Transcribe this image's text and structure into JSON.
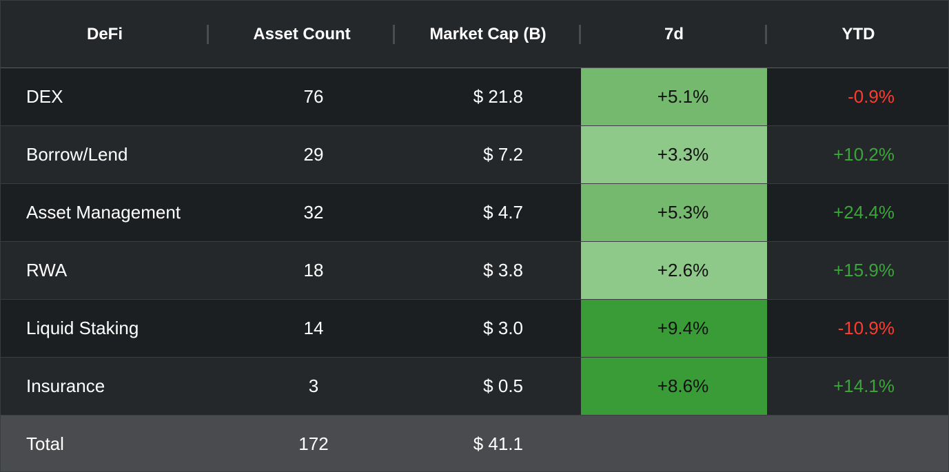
{
  "headers": {
    "category": "DeFi",
    "asset_count": "Asset Count",
    "market_cap": "Market Cap (B)",
    "seven_day": "7d",
    "ytd": "YTD"
  },
  "colors": {
    "header_bg": "#25282b",
    "row_dark": "#1c1f22",
    "row_light": "#25282b",
    "total_bg": "#4a4b4e",
    "heat_low": "#8ec98a",
    "heat_mid": "#74b96e",
    "heat_high": "#3a9c37",
    "positive_text": "#3aa53a",
    "negative_text": "#ff3b30"
  },
  "rows": [
    {
      "category": "DEX",
      "asset_count": "76",
      "market_cap": "$ 21.8",
      "seven_day": "+5.1%",
      "seven_day_heat": "mid",
      "ytd": "-0.9%",
      "ytd_sign": "negative"
    },
    {
      "category": "Borrow/Lend",
      "asset_count": "29",
      "market_cap": "$ 7.2",
      "seven_day": "+3.3%",
      "seven_day_heat": "low",
      "ytd": "+10.2%",
      "ytd_sign": "positive"
    },
    {
      "category": "Asset Management",
      "asset_count": "32",
      "market_cap": "$ 4.7",
      "seven_day": "+5.3%",
      "seven_day_heat": "mid",
      "ytd": "+24.4%",
      "ytd_sign": "positive"
    },
    {
      "category": "RWA",
      "asset_count": "18",
      "market_cap": "$ 3.8",
      "seven_day": "+2.6%",
      "seven_day_heat": "low",
      "ytd": "+15.9%",
      "ytd_sign": "positive"
    },
    {
      "category": "Liquid Staking",
      "asset_count": "14",
      "market_cap": "$ 3.0",
      "seven_day": "+9.4%",
      "seven_day_heat": "high",
      "ytd": "-10.9%",
      "ytd_sign": "negative"
    },
    {
      "category": "Insurance",
      "asset_count": "3",
      "market_cap": "$ 0.5",
      "seven_day": "+8.6%",
      "seven_day_heat": "high",
      "ytd": "+14.1%",
      "ytd_sign": "positive"
    }
  ],
  "total": {
    "label": "Total",
    "asset_count": "172",
    "market_cap": "$ 41.1",
    "seven_day": "",
    "ytd": ""
  }
}
